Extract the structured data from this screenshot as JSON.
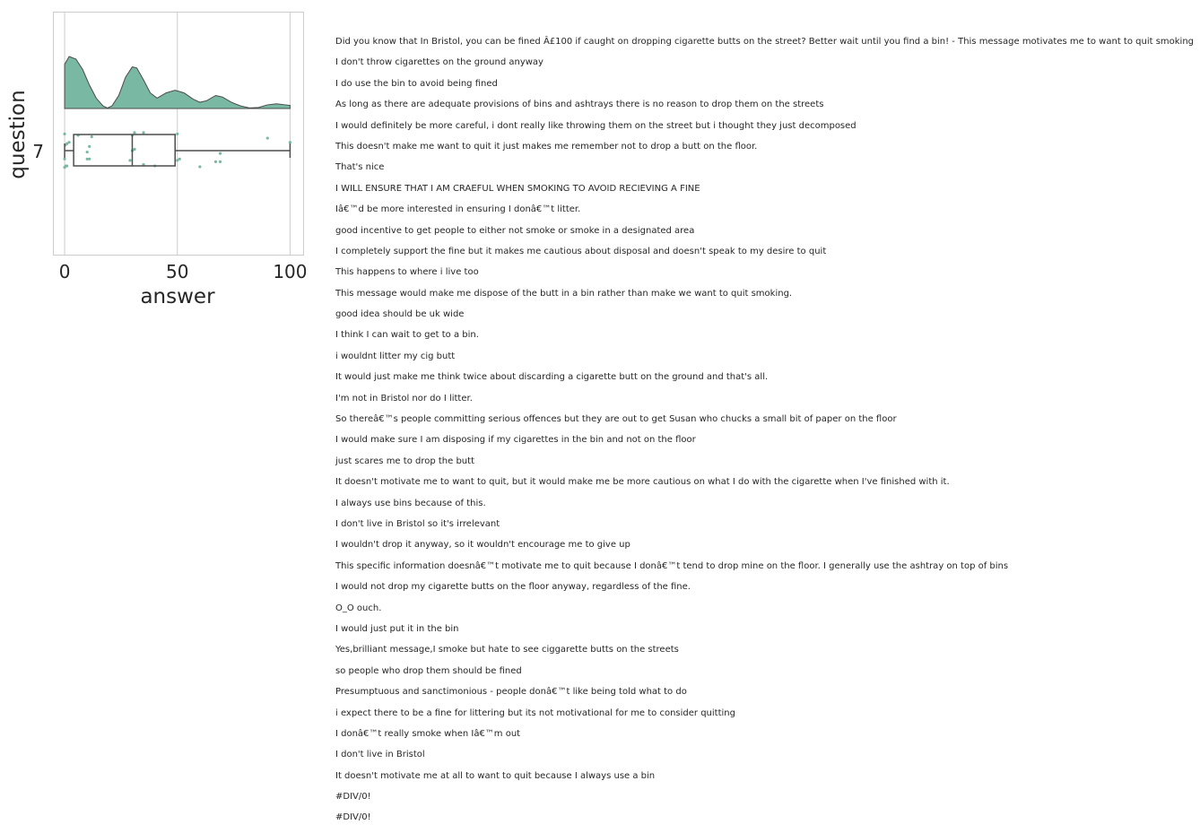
{
  "chart_data": {
    "type": "raincloud",
    "xlabel": "answer",
    "ylabel": "question",
    "categories": [
      "7"
    ],
    "xlim": [
      -5,
      106
    ],
    "xticks": [
      0,
      50,
      100
    ],
    "grid": true,
    "color": "#79b8a2",
    "box": {
      "min": 0,
      "q1": 4,
      "median": 30,
      "q3": 49,
      "max": 100
    },
    "density": [
      {
        "x": 0,
        "y": 0.85
      },
      {
        "x": 2,
        "y": 1.0
      },
      {
        "x": 5,
        "y": 0.95
      },
      {
        "x": 8,
        "y": 0.75
      },
      {
        "x": 11,
        "y": 0.45
      },
      {
        "x": 14,
        "y": 0.2
      },
      {
        "x": 17,
        "y": 0.05
      },
      {
        "x": 19,
        "y": 0.01
      },
      {
        "x": 21,
        "y": 0.05
      },
      {
        "x": 24,
        "y": 0.25
      },
      {
        "x": 27,
        "y": 0.6
      },
      {
        "x": 30,
        "y": 0.8
      },
      {
        "x": 32,
        "y": 0.78
      },
      {
        "x": 35,
        "y": 0.55
      },
      {
        "x": 38,
        "y": 0.3
      },
      {
        "x": 41,
        "y": 0.2
      },
      {
        "x": 45,
        "y": 0.3
      },
      {
        "x": 49,
        "y": 0.35
      },
      {
        "x": 53,
        "y": 0.3
      },
      {
        "x": 57,
        "y": 0.18
      },
      {
        "x": 60,
        "y": 0.12
      },
      {
        "x": 63,
        "y": 0.15
      },
      {
        "x": 67,
        "y": 0.25
      },
      {
        "x": 70,
        "y": 0.22
      },
      {
        "x": 74,
        "y": 0.12
      },
      {
        "x": 78,
        "y": 0.05
      },
      {
        "x": 82,
        "y": 0.01
      },
      {
        "x": 86,
        "y": 0.02
      },
      {
        "x": 90,
        "y": 0.07
      },
      {
        "x": 94,
        "y": 0.09
      },
      {
        "x": 98,
        "y": 0.07
      },
      {
        "x": 100,
        "y": 0.06
      }
    ],
    "points": [
      {
        "x": 0,
        "j": -0.6
      },
      {
        "x": 0,
        "j": 0.3
      },
      {
        "x": 0,
        "j": 0.6
      },
      {
        "x": 0.3,
        "j": -0.2
      },
      {
        "x": 0.5,
        "j": 0.55
      },
      {
        "x": 1,
        "j": -0.25
      },
      {
        "x": 1,
        "j": 0.55
      },
      {
        "x": 2,
        "j": -0.3
      },
      {
        "x": 6,
        "j": -0.55
      },
      {
        "x": 10,
        "j": 0.05
      },
      {
        "x": 10,
        "j": 0.3
      },
      {
        "x": 11,
        "j": 0.3
      },
      {
        "x": 11,
        "j": -0.15
      },
      {
        "x": 12,
        "j": -0.5
      },
      {
        "x": 29,
        "j": 0.35
      },
      {
        "x": 30,
        "j": -0.55
      },
      {
        "x": 30,
        "j": 0.0
      },
      {
        "x": 31,
        "j": -0.05
      },
      {
        "x": 31,
        "j": -0.65
      },
      {
        "x": 35,
        "j": -0.65
      },
      {
        "x": 35,
        "j": 0.5
      },
      {
        "x": 40,
        "j": 0.55
      },
      {
        "x": 50,
        "j": 0.35
      },
      {
        "x": 50,
        "j": -0.6
      },
      {
        "x": 51,
        "j": 0.3
      },
      {
        "x": 60,
        "j": 0.58
      },
      {
        "x": 67,
        "j": 0.4
      },
      {
        "x": 69,
        "j": 0.4
      },
      {
        "x": 69,
        "j": 0.1
      },
      {
        "x": 90,
        "j": -0.45
      },
      {
        "x": 100,
        "j": -0.3
      }
    ],
    "comments": [
      "Did you know that In Bristol, you can be fined  Â£100 if caught on dropping cigarette butts on the street? Better wait until you find a bin! - This message motivates me to want to quit smoking",
      "I don't throw cigarettes on the ground anyway",
      "I do use the bin to avoid being fined",
      "As long as there are adequate provisions of bins and ashtrays there is no reason to drop them on the streets",
      "I would definitely be more careful, i dont really like throwing them on the street but i thought they just decomposed",
      "This doesn't make me want to quit it just makes me remember not to drop a butt on the floor.",
      "That's nice",
      "I WILL ENSURE THAT I AM CRAEFUL WHEN SMOKING TO AVOID RECIEVING A FINE",
      "Iâ€™d be more interested in ensuring I donâ€™t litter.",
      "good incentive to get people to either not smoke or smoke in a designated area",
      "I completely support the fine but it makes me cautious about disposal and doesn't speak to my desire to quit",
      "This happens to where i live too",
      "This message would make me dispose of the butt in a bin rather than make we want to quit smoking.",
      "good idea should be uk wide",
      "I think I can wait to get to a bin.",
      "i wouldnt litter my cig butt",
      "It would just make me think twice about discarding a cigarette butt on the ground and that's all.",
      "I'm not in Bristol nor do I litter.",
      "So thereâ€™s people committing serious offences but they are out to get Susan who chucks a small bit of paper on the floor",
      "I would make sure I am disposing if my cigarettes in the bin and not on the floor",
      "just scares me to drop the butt",
      "It doesn't motivate me to want to quit, but it would make me be more cautious on what I do with the cigarette when I've finished with it.",
      "I always use bins because of this.",
      "I don't live in Bristol so it's irrelevant",
      "I wouldn't drop it anyway, so it wouldn't encourage me to give up",
      "This specific information doesnâ€™t motivate me to quit because I donâ€™t tend to drop mine on the floor. I generally use the ashtray on top of bins",
      "I would not drop my cigarette butts on the floor anyway, regardless of the fine.",
      "O_O ouch.",
      "I would just put it in the bin",
      "Yes,brilliant message,I smoke but hate to see ciggarette butts on the streets",
      "so people who drop them should be fined",
      "Presumptuous and sanctimonious - people donâ€™t like being told what to do",
      "i expect there to be a fine for littering but its not motivational for me to consider quitting",
      "I donâ€™t really smoke when Iâ€™m out",
      "I don't live in Bristol",
      "It doesn't motivate me at all to want to quit because I always use a bin",
      "#DIV/0!",
      "#DIV/0!"
    ]
  }
}
